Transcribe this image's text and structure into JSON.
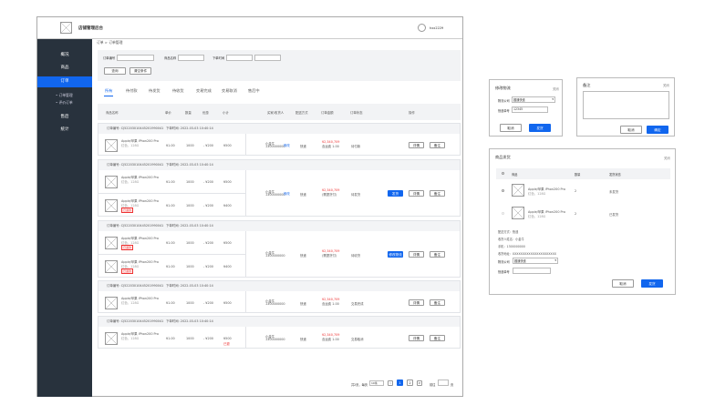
{
  "app": {
    "title": "店铺管理后台",
    "username": "hxx2229"
  },
  "sidebar": {
    "items": [
      {
        "label": "概况"
      },
      {
        "label": "商品"
      },
      {
        "label": "订单",
        "active": true
      },
      {
        "label": "售后"
      },
      {
        "label": "统计"
      }
    ],
    "subitems": [
      {
        "label": "• 订单管理"
      },
      {
        "label": "• 评价订单"
      }
    ]
  },
  "breadcrumb": "订单 > 订单管理",
  "filters": {
    "order_no_label": "订单编号",
    "product_label": "商品名称",
    "time_label": "下单时间",
    "search_button": "查询",
    "clear_button": "清空条件"
  },
  "tabs": [
    {
      "label": "所有",
      "active": true
    },
    {
      "label": "待付款"
    },
    {
      "label": "待发货"
    },
    {
      "label": "待收货"
    },
    {
      "label": "交易完成"
    },
    {
      "label": "交易取消"
    },
    {
      "label": "售后中"
    }
  ],
  "table_headers": [
    "商品名称",
    "单价",
    "数量",
    "优惠",
    "小计",
    "买家/收货人",
    "配送方式",
    "订单金额",
    "订单状态",
    "操作"
  ],
  "orders": [
    {
      "order_no": "订单编号: CJ52203010445201990041",
      "time": "下单时间: 2022-03-03 10:40:14",
      "items": [
        {
          "name": "Apple/苹果 iPhon200 Pro",
          "spec": "红色，128G",
          "price": "¥1.00",
          "qty": "1000",
          "discount": "- ¥200",
          "subtotal": "¥500"
        }
      ],
      "buyer": "小金牛",
      "phone": "1300000000",
      "edit": "修改",
      "shipping": "快递",
      "amount": "¥2,340,709",
      "amount_note": "含运费 1.00",
      "status": "待付款",
      "buttons": [
        "详情",
        "备注"
      ]
    },
    {
      "order_no": "订单编号: CJ52203010445201990041",
      "time": "下单时间: 2022-03-03 10:40:14",
      "items": [
        {
          "name": "Apple/苹果 iPhon200 Pro",
          "spec": "红色，128G",
          "price": "¥1.00",
          "qty": "1000",
          "discount": "- ¥200",
          "subtotal": "¥500"
        },
        {
          "name": "Apple/苹果 iPhon200 Pro",
          "spec": "红色，128G",
          "tag": "已退款",
          "price": "¥1.00",
          "qty": "1000",
          "discount": "- ¥200",
          "subtotal": "¥400"
        }
      ],
      "buyer": "小金牛",
      "phone": "1300000000",
      "edit": "修改",
      "shipping": "快递",
      "amount": "¥2,340,709",
      "amount_note": "(需提货付)",
      "status": "待发货",
      "buttons": [
        "发货",
        "详情",
        "备注"
      ]
    },
    {
      "order_no": "订单编号: CJ52203010445201990041",
      "time": "下单时间: 2022-03-03 10:40:14",
      "items": [
        {
          "name": "Apple/苹果 iPhon200 Pro",
          "spec": "红色，128G",
          "tag": "已退款",
          "price": "¥1.00",
          "qty": "1000",
          "discount": "- ¥200",
          "subtotal": "¥500"
        },
        {
          "name": "Apple/苹果 iPhon200 Pro",
          "spec": "红色，128G",
          "tag": "已退款",
          "price": "¥1.00",
          "qty": "1000",
          "discount": "- ¥200",
          "subtotal": "¥400"
        }
      ],
      "buyer": "小金牛",
      "phone": "1300000000",
      "shipping": "快递",
      "amount": "¥2,340,709",
      "amount_note": "(需提货付)",
      "status": "待收货",
      "buttons": [
        "修改物流",
        "详情",
        "备注"
      ]
    },
    {
      "order_no": "订单编号: CJ52203010445201990041",
      "time": "下单时间: 2022-03-03 10:40:14",
      "items": [
        {
          "name": "Apple/苹果 iPhon200 Pro",
          "spec": "红色，128G",
          "price": "¥1.00",
          "qty": "1000",
          "discount": "- ¥200",
          "subtotal": "¥500"
        }
      ],
      "buyer": "小金牛",
      "phone": "1300000000",
      "shipping": "快递",
      "amount": "¥2,340,709",
      "amount_note": "含运费 1.00",
      "status": "交易完成",
      "buttons": [
        "详情",
        "备注"
      ]
    },
    {
      "order_no": "订单编号: CJ52203010445201990041",
      "time": "下单时间: 2022-03-03 10:40:14",
      "items": [
        {
          "name": "Apple/苹果 iPhon200 Pro",
          "spec": "红色，128G",
          "price": "¥1.00",
          "qty": "1000",
          "discount": "- ¥200",
          "subtotal": "¥500",
          "refund": "已退"
        }
      ],
      "buyer": "小金牛",
      "phone": "1300000000",
      "shipping": "快递",
      "amount": "¥2,340,709",
      "amount_note": "含运费 1.00",
      "status": "交易取消",
      "buttons": [
        "详情",
        "备注"
      ]
    }
  ],
  "pagination": {
    "total": "共2页，每页",
    "per_page": "10条",
    "prev": "<",
    "pages": [
      "1",
      "2"
    ],
    "current": "1",
    "next": ">",
    "goto": "前往",
    "goto_suffix": "页"
  },
  "logistics_dialog": {
    "title": "修改物流",
    "close": "关闭",
    "company_label": "物流公司",
    "company_value": "圆通快递",
    "tracking_label": "快递单号",
    "tracking_value": "12345",
    "cancel": "取消",
    "confirm": "发货"
  },
  "remark_dialog": {
    "title": "备注",
    "close": "关闭",
    "cancel": "取消",
    "confirm": "确定"
  },
  "ship_dialog": {
    "title": "商品发货",
    "close": "关闭",
    "headers": [
      "商品",
      "数量",
      "发货状态"
    ],
    "items": [
      {
        "name": "Apple/苹果 iPhon200 Pro",
        "spec": "红色，128G",
        "qty": "2",
        "status": "未发货"
      },
      {
        "name": "Apple/苹果 iPhon200 Pro",
        "spec": "红色，128G",
        "qty": "2",
        "status": "已发货"
      }
    ],
    "shipping_method": "配送方式：快递",
    "receiver": "收货人姓名：小金牛",
    "phone": "手机：1300000000",
    "address": "收货地址：XXXXXXXXXXXXXXXXXXXXXX",
    "company_label": "物流公司",
    "company_value": "圆通快递",
    "tracking_label": "快递单号",
    "cancel": "取消",
    "confirm": "发货"
  },
  "colors": {
    "primary": "#1166ee",
    "sidebar": "#28323d",
    "danger": "#ee3333"
  }
}
